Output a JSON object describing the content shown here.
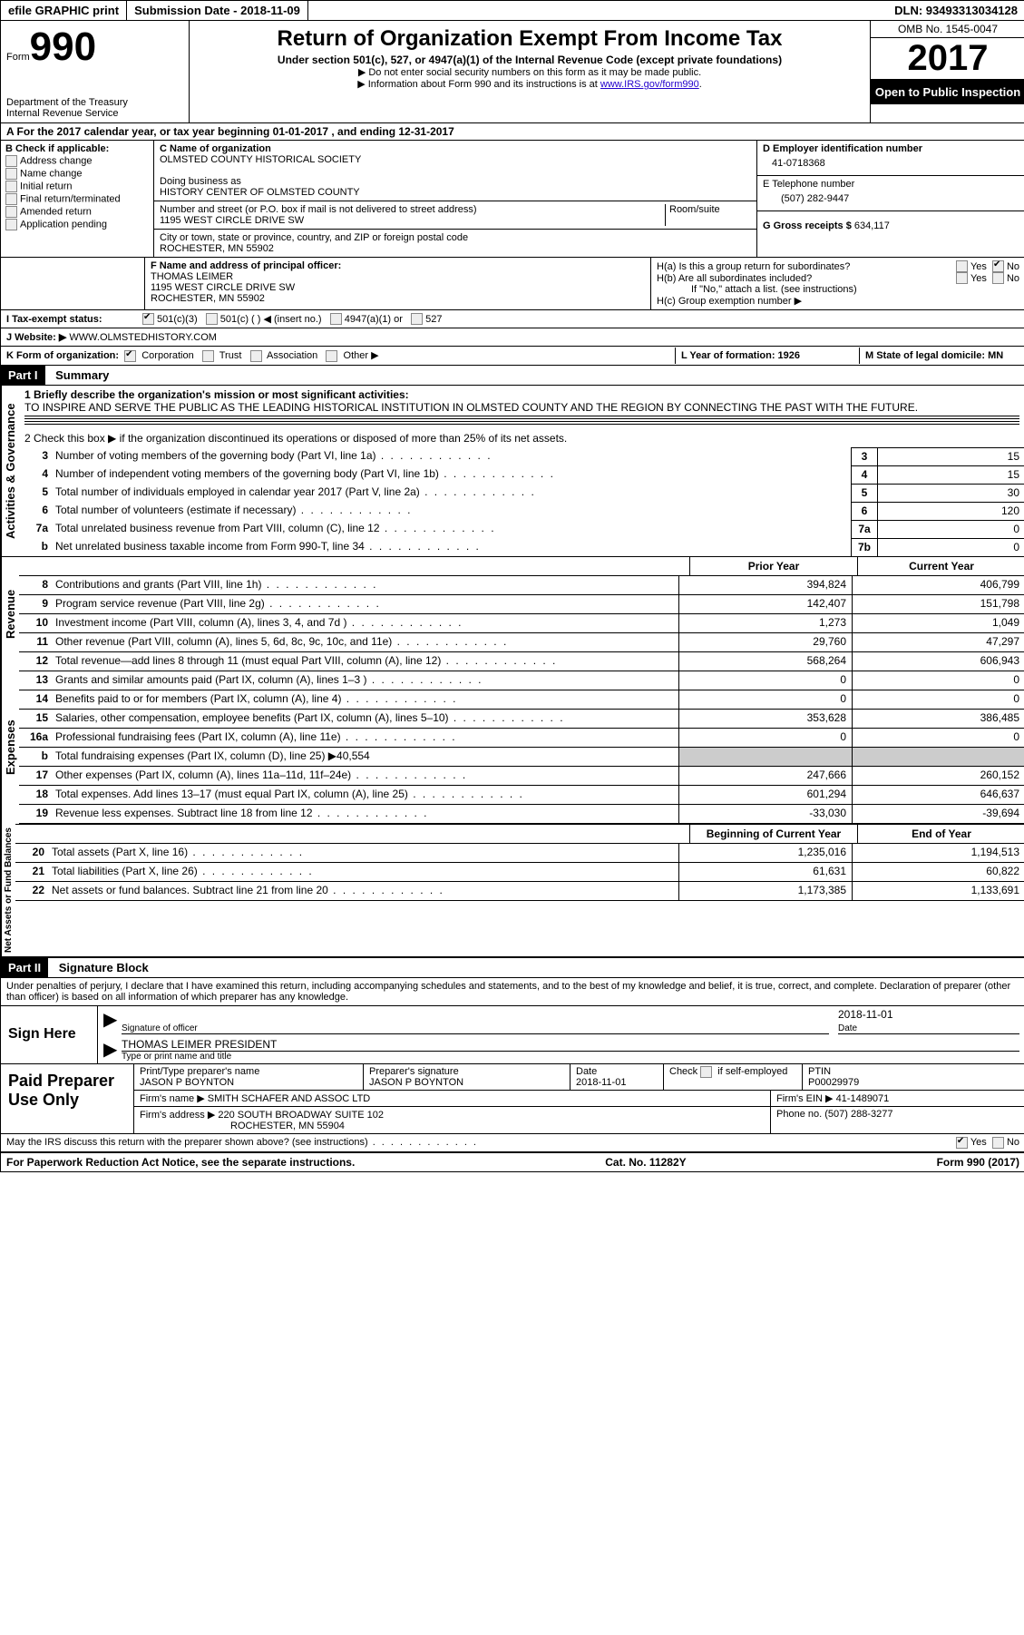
{
  "top": {
    "efile": "efile GRAPHIC print",
    "submission": "Submission Date - 2018-11-09",
    "dln": "DLN: 93493313034128"
  },
  "header": {
    "form_label": "Form",
    "form_no": "990",
    "dept": "Department of the Treasury",
    "irs": "Internal Revenue Service",
    "title": "Return of Organization Exempt From Income Tax",
    "subtitle": "Under section 501(c), 527, or 4947(a)(1) of the Internal Revenue Code (except private foundations)",
    "note1": "▶ Do not enter social security numbers on this form as it may be made public.",
    "note2_pre": "▶ Information about Form 990 and its instructions is at ",
    "note2_link": "www.IRS.gov/form990",
    "note2_post": ".",
    "omb": "OMB No. 1545-0047",
    "year": "2017",
    "open": "Open to Public Inspection"
  },
  "a": "A   For the 2017 calendar year, or tax year beginning 01-01-2017   , and ending 12-31-2017",
  "b": {
    "label": "B Check if applicable:",
    "opts": [
      "Address change",
      "Name change",
      "Initial return",
      "Final return/terminated",
      "Amended return",
      "Application pending"
    ]
  },
  "c": {
    "name_lbl": "C Name of organization",
    "name": "OLMSTED COUNTY HISTORICAL SOCIETY",
    "dba_lbl": "Doing business as",
    "dba": "HISTORY CENTER OF OLMSTED COUNTY",
    "street_lbl": "Number and street (or P.O. box if mail is not delivered to street address)",
    "room_lbl": "Room/suite",
    "street": "1195 WEST CIRCLE DRIVE SW",
    "city_lbl": "City or town, state or province, country, and ZIP or foreign postal code",
    "city": "ROCHESTER, MN  55902"
  },
  "d": {
    "lbl": "D Employer identification number",
    "val": "41-0718368"
  },
  "e": {
    "lbl": "E Telephone number",
    "val": "(507) 282-9447"
  },
  "g": {
    "lbl": "G Gross receipts $",
    "val": "634,117"
  },
  "f": {
    "lbl": "F Name and address of principal officer:",
    "name": "THOMAS LEIMER",
    "addr1": "1195 WEST CIRCLE DRIVE SW",
    "addr2": "ROCHESTER, MN  55902"
  },
  "h": {
    "a": "H(a) Is this a group return for subordinates?",
    "b": "H(b) Are all subordinates included?",
    "note": "If \"No,\" attach a list. (see instructions)",
    "c": "H(c) Group exemption number ▶"
  },
  "i": {
    "lbl": "I   Tax-exempt status:",
    "opts": [
      "501(c)(3)",
      "501(c) (   ) ◀ (insert no.)",
      "4947(a)(1) or",
      "527"
    ]
  },
  "j": {
    "lbl": "J   Website: ▶",
    "val": "WWW.OLMSTEDHISTORY.COM"
  },
  "k": {
    "lbl": "K Form of organization:",
    "opts": [
      "Corporation",
      "Trust",
      "Association",
      "Other ▶"
    ]
  },
  "l": "L Year of formation: 1926",
  "m": "M State of legal domicile: MN",
  "part1": {
    "header": "Part I",
    "title": "Summary",
    "line1_lbl": "1  Briefly describe the organization's mission or most significant activities:",
    "line1_txt": "TO INSPIRE AND SERVE THE PUBLIC AS THE LEADING HISTORICAL INSTITUTION IN OLMSTED COUNTY AND THE REGION BY CONNECTING THE PAST WITH THE FUTURE.",
    "line2": "2     Check this box ▶       if the organization discontinued its operations or disposed of more than 25% of its net assets.",
    "lines_gov": [
      {
        "n": "3",
        "d": "Number of voting members of the governing body (Part VI, line 1a)",
        "box": "3",
        "v": "15"
      },
      {
        "n": "4",
        "d": "Number of independent voting members of the governing body (Part VI, line 1b)",
        "box": "4",
        "v": "15"
      },
      {
        "n": "5",
        "d": "Total number of individuals employed in calendar year 2017 (Part V, line 2a)",
        "box": "5",
        "v": "30"
      },
      {
        "n": "6",
        "d": "Total number of volunteers (estimate if necessary)",
        "box": "6",
        "v": "120"
      },
      {
        "n": "7a",
        "d": "Total unrelated business revenue from Part VIII, column (C), line 12",
        "box": "7a",
        "v": "0"
      },
      {
        "n": "b",
        "d": "Net unrelated business taxable income from Form 990-T, line 34",
        "box": "7b",
        "v": "0"
      }
    ],
    "col_prior": "Prior Year",
    "col_current": "Current Year",
    "revenue": [
      {
        "n": "8",
        "d": "Contributions and grants (Part VIII, line 1h)",
        "v1": "394,824",
        "v2": "406,799"
      },
      {
        "n": "9",
        "d": "Program service revenue (Part VIII, line 2g)",
        "v1": "142,407",
        "v2": "151,798"
      },
      {
        "n": "10",
        "d": "Investment income (Part VIII, column (A), lines 3, 4, and 7d )",
        "v1": "1,273",
        "v2": "1,049"
      },
      {
        "n": "11",
        "d": "Other revenue (Part VIII, column (A), lines 5, 6d, 8c, 9c, 10c, and 11e)",
        "v1": "29,760",
        "v2": "47,297"
      },
      {
        "n": "12",
        "d": "Total revenue—add lines 8 through 11 (must equal Part VIII, column (A), line 12)",
        "v1": "568,264",
        "v2": "606,943"
      }
    ],
    "expenses": [
      {
        "n": "13",
        "d": "Grants and similar amounts paid (Part IX, column (A), lines 1–3 )",
        "v1": "0",
        "v2": "0"
      },
      {
        "n": "14",
        "d": "Benefits paid to or for members (Part IX, column (A), line 4)",
        "v1": "0",
        "v2": "0"
      },
      {
        "n": "15",
        "d": "Salaries, other compensation, employee benefits (Part IX, column (A), lines 5–10)",
        "v1": "353,628",
        "v2": "386,485"
      },
      {
        "n": "16a",
        "d": "Professional fundraising fees (Part IX, column (A), line 11e)",
        "v1": "0",
        "v2": "0"
      },
      {
        "n": "b",
        "d": "Total fundraising expenses (Part IX, column (D), line 25) ▶40,554",
        "grey": true
      },
      {
        "n": "17",
        "d": "Other expenses (Part IX, column (A), lines 11a–11d, 11f–24e)",
        "v1": "247,666",
        "v2": "260,152"
      },
      {
        "n": "18",
        "d": "Total expenses. Add lines 13–17 (must equal Part IX, column (A), line 25)",
        "v1": "601,294",
        "v2": "646,637"
      },
      {
        "n": "19",
        "d": "Revenue less expenses. Subtract line 18 from line 12",
        "v1": "-33,030",
        "v2": "-39,694"
      }
    ],
    "col_begin": "Beginning of Current Year",
    "col_end": "End of Year",
    "netassets": [
      {
        "n": "20",
        "d": "Total assets (Part X, line 16)",
        "v1": "1,235,016",
        "v2": "1,194,513"
      },
      {
        "n": "21",
        "d": "Total liabilities (Part X, line 26)",
        "v1": "61,631",
        "v2": "60,822"
      },
      {
        "n": "22",
        "d": "Net assets or fund balances. Subtract line 21 from line 20",
        "v1": "1,173,385",
        "v2": "1,133,691"
      }
    ],
    "vlabels": {
      "gov": "Activities & Governance",
      "rev": "Revenue",
      "exp": "Expenses",
      "net": "Net Assets or Fund Balances"
    }
  },
  "part2": {
    "header": "Part II",
    "title": "Signature Block",
    "decl": "Under penalties of perjury, I declare that I have examined this return, including accompanying schedules and statements, and to the best of my knowledge and belief, it is true, correct, and complete. Declaration of preparer (other than officer) is based on all information of which preparer has any knowledge.",
    "sign_here": "Sign Here",
    "sig_officer": "Signature of officer",
    "sig_date": "2018-11-01",
    "date_lbl": "Date",
    "officer_name": "THOMAS LEIMER PRESIDENT",
    "type_lbl": "Type or print name and title",
    "paid": "Paid Preparer Use Only",
    "prep_name_lbl": "Print/Type preparer's name",
    "prep_name": "JASON P BOYNTON",
    "prep_sig_lbl": "Preparer's signature",
    "prep_sig": "JASON P BOYNTON",
    "prep_date": "2018-11-01",
    "check_self": "Check       if self-employed",
    "ptin_lbl": "PTIN",
    "ptin": "P00029979",
    "firm_name_lbl": "Firm's name      ▶",
    "firm_name": "SMITH SCHAFER AND ASSOC LTD",
    "firm_ein_lbl": "Firm's EIN ▶",
    "firm_ein": "41-1489071",
    "firm_addr_lbl": "Firm's address ▶",
    "firm_addr": "220 SOUTH BROADWAY SUITE 102",
    "firm_city": "ROCHESTER, MN  55904",
    "phone_lbl": "Phone no.",
    "phone": "(507) 288-3277",
    "may_discuss": "May the IRS discuss this return with the preparer shown above? (see instructions)",
    "yes": "Yes",
    "no": "No"
  },
  "footer": {
    "left": "For Paperwork Reduction Act Notice, see the separate instructions.",
    "center": "Cat. No. 11282Y",
    "right": "Form 990 (2017)"
  }
}
